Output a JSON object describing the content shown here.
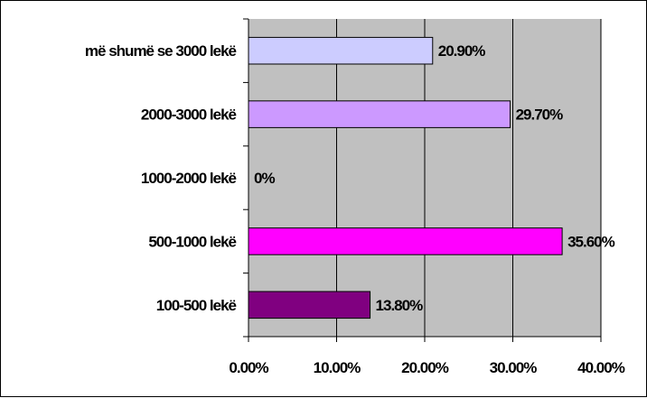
{
  "chart_data": {
    "type": "bar",
    "orientation": "horizontal",
    "categories": [
      "100-500 lekë",
      "500-1000 lekë",
      "1000-2000 lekë",
      "2000-3000 lekë",
      "më shumë se 3000 lekë"
    ],
    "values": [
      13.8,
      35.6,
      0,
      29.7,
      20.9
    ],
    "value_labels": [
      "13.80%",
      "35.60%",
      "0%",
      "29.70%",
      "20.90%"
    ],
    "bar_colors": [
      "#800080",
      "#ff00ff",
      "#ffffff",
      "#cc99ff",
      "#ccccff"
    ],
    "xlim": [
      0,
      40
    ],
    "x_ticks": [
      0,
      10,
      20,
      30,
      40
    ],
    "x_tick_labels": [
      "0.00%",
      "10.00%",
      "20.00%",
      "30.00%",
      "40.00%"
    ],
    "title": "",
    "xlabel": "",
    "ylabel": "",
    "grid": "vertical",
    "legend": "none",
    "plot_background": "#c0c0c0"
  }
}
